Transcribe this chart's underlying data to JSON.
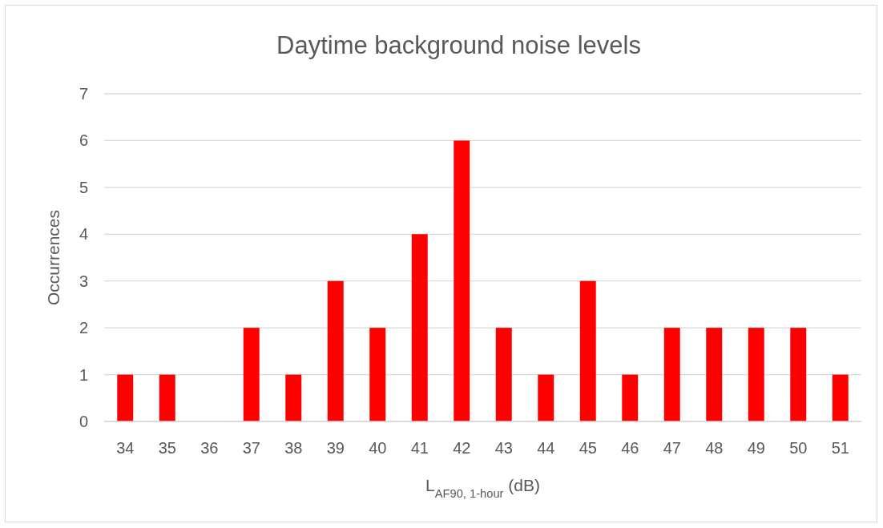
{
  "chart_data": {
    "type": "bar",
    "title": "Daytime background noise levels",
    "xlabel": "L$_{AF90, 1-hour}$ (dB)",
    "ylabel": "Occurrences",
    "categories": [
      "34",
      "35",
      "36",
      "37",
      "38",
      "39",
      "40",
      "41",
      "42",
      "43",
      "44",
      "45",
      "46",
      "47",
      "48",
      "49",
      "50",
      "51"
    ],
    "values": [
      1,
      1,
      0,
      2,
      1,
      3,
      2,
      4,
      6,
      2,
      1,
      3,
      1,
      2,
      2,
      2,
      2,
      1
    ],
    "color": "#ff0000",
    "ylim": [
      0,
      7
    ],
    "yticks": [
      0,
      1,
      2,
      3,
      4,
      5,
      6,
      7
    ],
    "grid": "y"
  }
}
